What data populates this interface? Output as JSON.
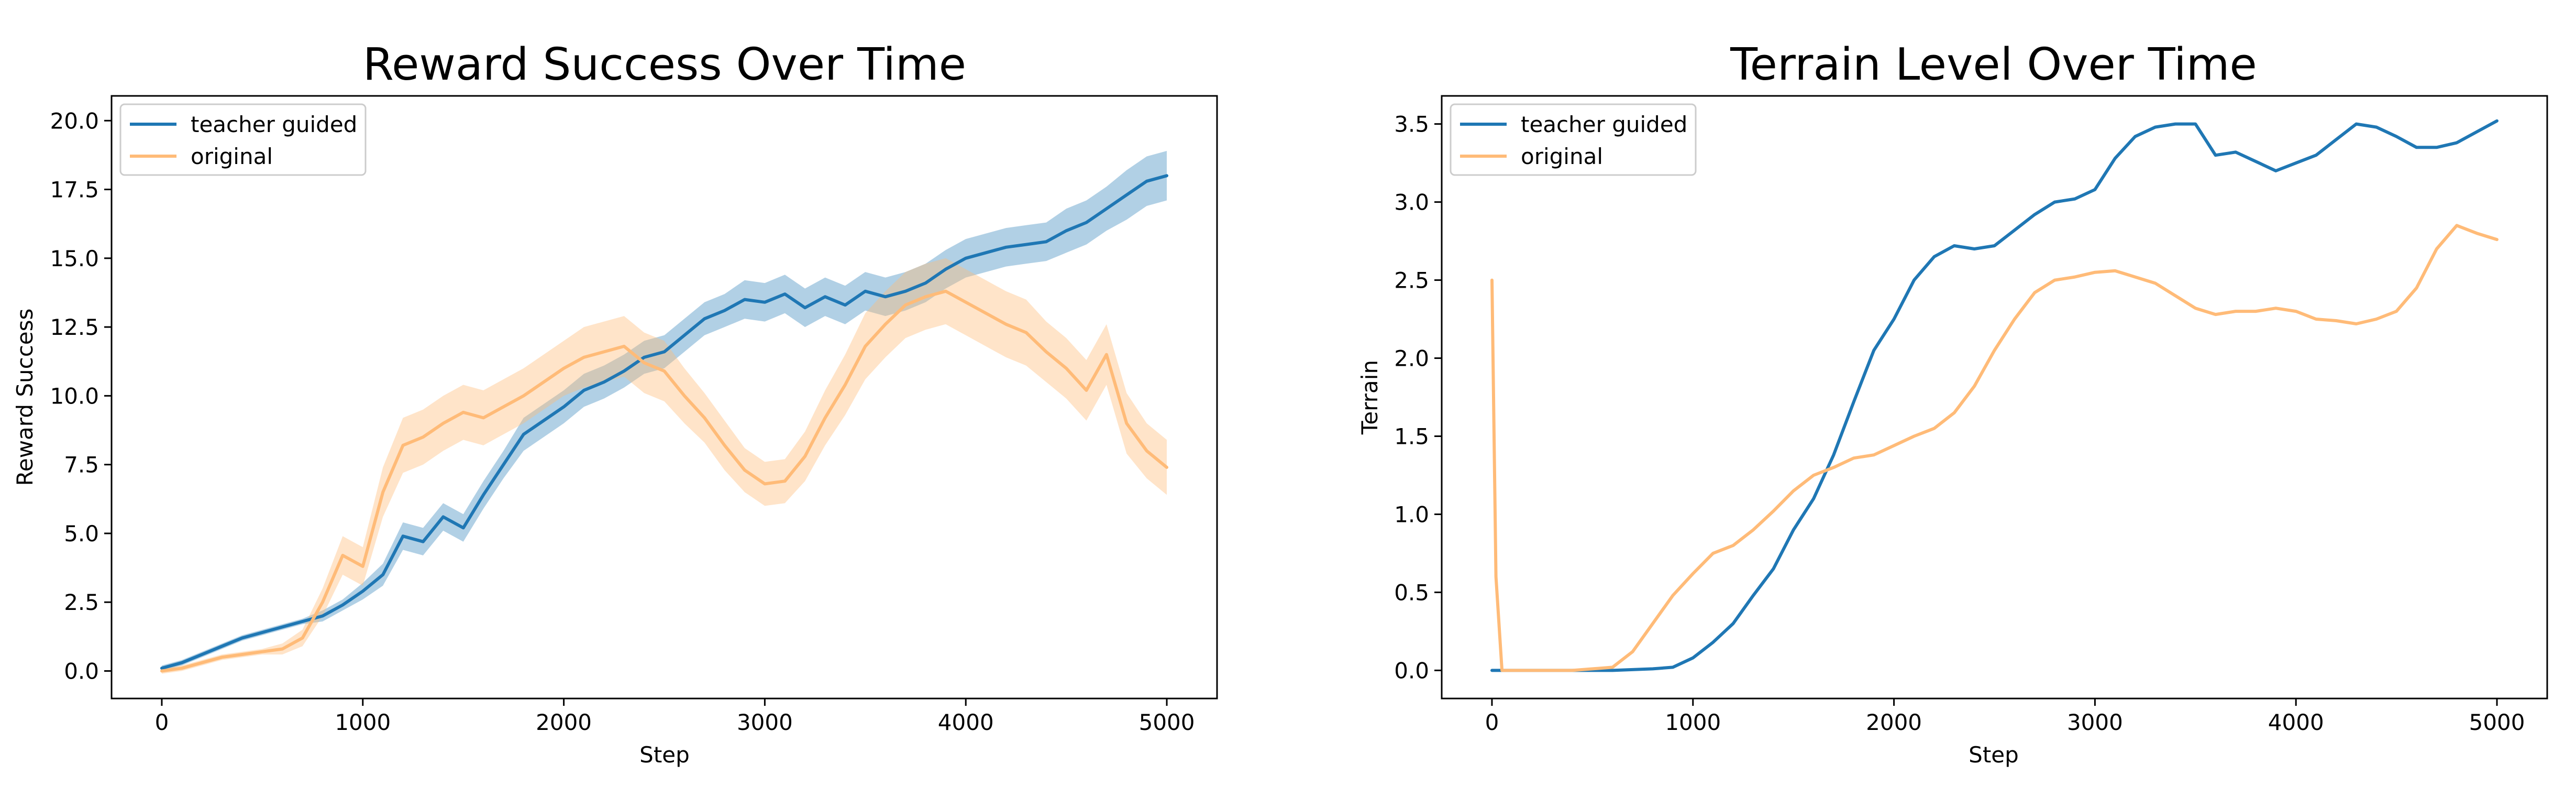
{
  "colors": {
    "teacher_guided": "#1f77b4",
    "original": "#ffbb78"
  },
  "chart_data": [
    {
      "type": "line",
      "title": "Reward Success Over Time",
      "xlabel": "Step",
      "ylabel": "Reward Success",
      "xlim": [
        -250,
        5250
      ],
      "ylim": [
        -1.0,
        20.9
      ],
      "xticks": [
        0,
        1000,
        2000,
        3000,
        4000,
        5000
      ],
      "xtick_labels": [
        "0",
        "1000",
        "2000",
        "3000",
        "4000",
        "5000"
      ],
      "yticks": [
        0.0,
        2.5,
        5.0,
        7.5,
        10.0,
        12.5,
        15.0,
        17.5,
        20.0
      ],
      "ytick_labels": [
        "0.0",
        "2.5",
        "5.0",
        "7.5",
        "10.0",
        "12.5",
        "15.0",
        "17.5",
        "20.0"
      ],
      "legend_position": "top-left",
      "grid": false,
      "shaded_band": true,
      "series": [
        {
          "name": "teacher guided",
          "color": "#1f77b4",
          "x": [
            0,
            100,
            200,
            300,
            400,
            500,
            600,
            700,
            800,
            900,
            1000,
            1100,
            1200,
            1300,
            1400,
            1500,
            1600,
            1700,
            1800,
            1900,
            2000,
            2100,
            2200,
            2300,
            2400,
            2500,
            2600,
            2700,
            2800,
            2900,
            3000,
            3100,
            3200,
            3300,
            3400,
            3500,
            3600,
            3700,
            3800,
            3900,
            4000,
            4100,
            4200,
            4300,
            4400,
            4500,
            4600,
            4700,
            4800,
            4900,
            5000
          ],
          "y": [
            0.1,
            0.3,
            0.6,
            0.9,
            1.2,
            1.4,
            1.6,
            1.8,
            2.0,
            2.4,
            2.9,
            3.5,
            4.9,
            4.7,
            5.6,
            5.2,
            6.4,
            7.5,
            8.6,
            9.1,
            9.6,
            10.2,
            10.5,
            10.9,
            11.4,
            11.6,
            12.2,
            12.8,
            13.1,
            13.5,
            13.4,
            13.7,
            13.2,
            13.6,
            13.3,
            13.8,
            13.6,
            13.8,
            14.1,
            14.6,
            15.0,
            15.2,
            15.4,
            15.5,
            15.6,
            16.0,
            16.3,
            16.8,
            17.3,
            17.8,
            18.0
          ],
          "band": [
            0.1,
            0.1,
            0.1,
            0.1,
            0.1,
            0.1,
            0.1,
            0.1,
            0.2,
            0.2,
            0.3,
            0.4,
            0.5,
            0.5,
            0.5,
            0.5,
            0.5,
            0.5,
            0.6,
            0.6,
            0.6,
            0.6,
            0.6,
            0.6,
            0.6,
            0.6,
            0.6,
            0.6,
            0.6,
            0.7,
            0.7,
            0.7,
            0.7,
            0.7,
            0.7,
            0.7,
            0.7,
            0.7,
            0.7,
            0.7,
            0.7,
            0.7,
            0.7,
            0.7,
            0.7,
            0.8,
            0.8,
            0.8,
            0.9,
            0.9,
            0.9
          ]
        },
        {
          "name": "original",
          "color": "#ffbb78",
          "x": [
            0,
            100,
            200,
            300,
            400,
            500,
            600,
            700,
            800,
            900,
            1000,
            1100,
            1200,
            1300,
            1400,
            1500,
            1600,
            1700,
            1800,
            1900,
            2000,
            2100,
            2200,
            2300,
            2400,
            2500,
            2600,
            2700,
            2800,
            2900,
            3000,
            3100,
            3200,
            3300,
            3400,
            3500,
            3600,
            3700,
            3800,
            3900,
            4000,
            4100,
            4200,
            4300,
            4400,
            4500,
            4600,
            4700,
            4800,
            4900,
            5000
          ],
          "y": [
            0.0,
            0.1,
            0.3,
            0.5,
            0.6,
            0.7,
            0.8,
            1.2,
            2.5,
            4.2,
            3.8,
            6.5,
            8.2,
            8.5,
            9.0,
            9.4,
            9.2,
            9.6,
            10.0,
            10.5,
            11.0,
            11.4,
            11.6,
            11.8,
            11.2,
            10.9,
            10.0,
            9.2,
            8.2,
            7.3,
            6.8,
            6.9,
            7.8,
            9.2,
            10.4,
            11.8,
            12.6,
            13.3,
            13.6,
            13.8,
            13.4,
            13.0,
            12.6,
            12.3,
            11.6,
            11.0,
            10.2,
            11.5,
            9.0,
            8.0,
            7.4
          ],
          "band": [
            0.1,
            0.1,
            0.1,
            0.1,
            0.1,
            0.1,
            0.2,
            0.3,
            0.5,
            0.7,
            0.7,
            0.9,
            1.0,
            1.0,
            1.0,
            1.0,
            1.0,
            1.0,
            1.0,
            1.0,
            1.0,
            1.1,
            1.1,
            1.1,
            1.1,
            1.1,
            1.0,
            0.9,
            0.9,
            0.8,
            0.8,
            0.8,
            0.9,
            1.0,
            1.1,
            1.2,
            1.2,
            1.2,
            1.2,
            1.2,
            1.2,
            1.2,
            1.2,
            1.2,
            1.1,
            1.1,
            1.1,
            1.1,
            1.1,
            1.0,
            1.0
          ]
        }
      ]
    },
    {
      "type": "line",
      "title": "Terrain Level Over Time",
      "xlabel": "Step",
      "ylabel": "Terrain",
      "xlim": [
        -250,
        5250
      ],
      "ylim": [
        -0.18,
        3.68
      ],
      "xticks": [
        0,
        1000,
        2000,
        3000,
        4000,
        5000
      ],
      "xtick_labels": [
        "0",
        "1000",
        "2000",
        "3000",
        "4000",
        "5000"
      ],
      "yticks": [
        0.0,
        0.5,
        1.0,
        1.5,
        2.0,
        2.5,
        3.0,
        3.5
      ],
      "ytick_labels": [
        "0.0",
        "0.5",
        "1.0",
        "1.5",
        "2.0",
        "2.5",
        "3.0",
        "3.5"
      ],
      "legend_position": "top-left",
      "grid": false,
      "shaded_band": false,
      "series": [
        {
          "name": "teacher guided",
          "color": "#1f77b4",
          "x": [
            0,
            200,
            400,
            600,
            800,
            900,
            1000,
            1100,
            1200,
            1300,
            1400,
            1500,
            1600,
            1700,
            1800,
            1900,
            2000,
            2100,
            2200,
            2300,
            2400,
            2500,
            2600,
            2700,
            2800,
            2900,
            3000,
            3100,
            3200,
            3300,
            3400,
            3500,
            3600,
            3700,
            3800,
            3900,
            4000,
            4100,
            4200,
            4300,
            4400,
            4500,
            4600,
            4700,
            4800,
            4900,
            5000
          ],
          "y": [
            0.0,
            0.0,
            0.0,
            0.0,
            0.01,
            0.02,
            0.08,
            0.18,
            0.3,
            0.48,
            0.65,
            0.9,
            1.1,
            1.38,
            1.72,
            2.05,
            2.25,
            2.5,
            2.65,
            2.72,
            2.7,
            2.72,
            2.82,
            2.92,
            3.0,
            3.02,
            3.08,
            3.28,
            3.42,
            3.48,
            3.5,
            3.5,
            3.3,
            3.32,
            3.26,
            3.2,
            3.25,
            3.3,
            3.4,
            3.5,
            3.48,
            3.42,
            3.35,
            3.35,
            3.38,
            3.45,
            3.52
          ]
        },
        {
          "name": "original",
          "color": "#ffbb78",
          "x": [
            0,
            20,
            50,
            200,
            400,
            600,
            700,
            800,
            900,
            1000,
            1100,
            1200,
            1300,
            1400,
            1500,
            1600,
            1700,
            1800,
            1900,
            2000,
            2100,
            2200,
            2300,
            2400,
            2500,
            2600,
            2700,
            2800,
            2900,
            3000,
            3100,
            3200,
            3300,
            3400,
            3500,
            3600,
            3700,
            3800,
            3900,
            4000,
            4100,
            4200,
            4300,
            4400,
            4500,
            4600,
            4700,
            4800,
            4900,
            5000
          ],
          "y": [
            2.5,
            0.6,
            0.0,
            0.0,
            0.0,
            0.02,
            0.12,
            0.3,
            0.48,
            0.62,
            0.75,
            0.8,
            0.9,
            1.02,
            1.15,
            1.25,
            1.3,
            1.36,
            1.38,
            1.44,
            1.5,
            1.55,
            1.65,
            1.82,
            2.05,
            2.25,
            2.42,
            2.5,
            2.52,
            2.55,
            2.56,
            2.52,
            2.48,
            2.4,
            2.32,
            2.28,
            2.3,
            2.3,
            2.32,
            2.3,
            2.25,
            2.24,
            2.22,
            2.25,
            2.3,
            2.45,
            2.7,
            2.85,
            2.8,
            2.76
          ]
        }
      ]
    }
  ]
}
